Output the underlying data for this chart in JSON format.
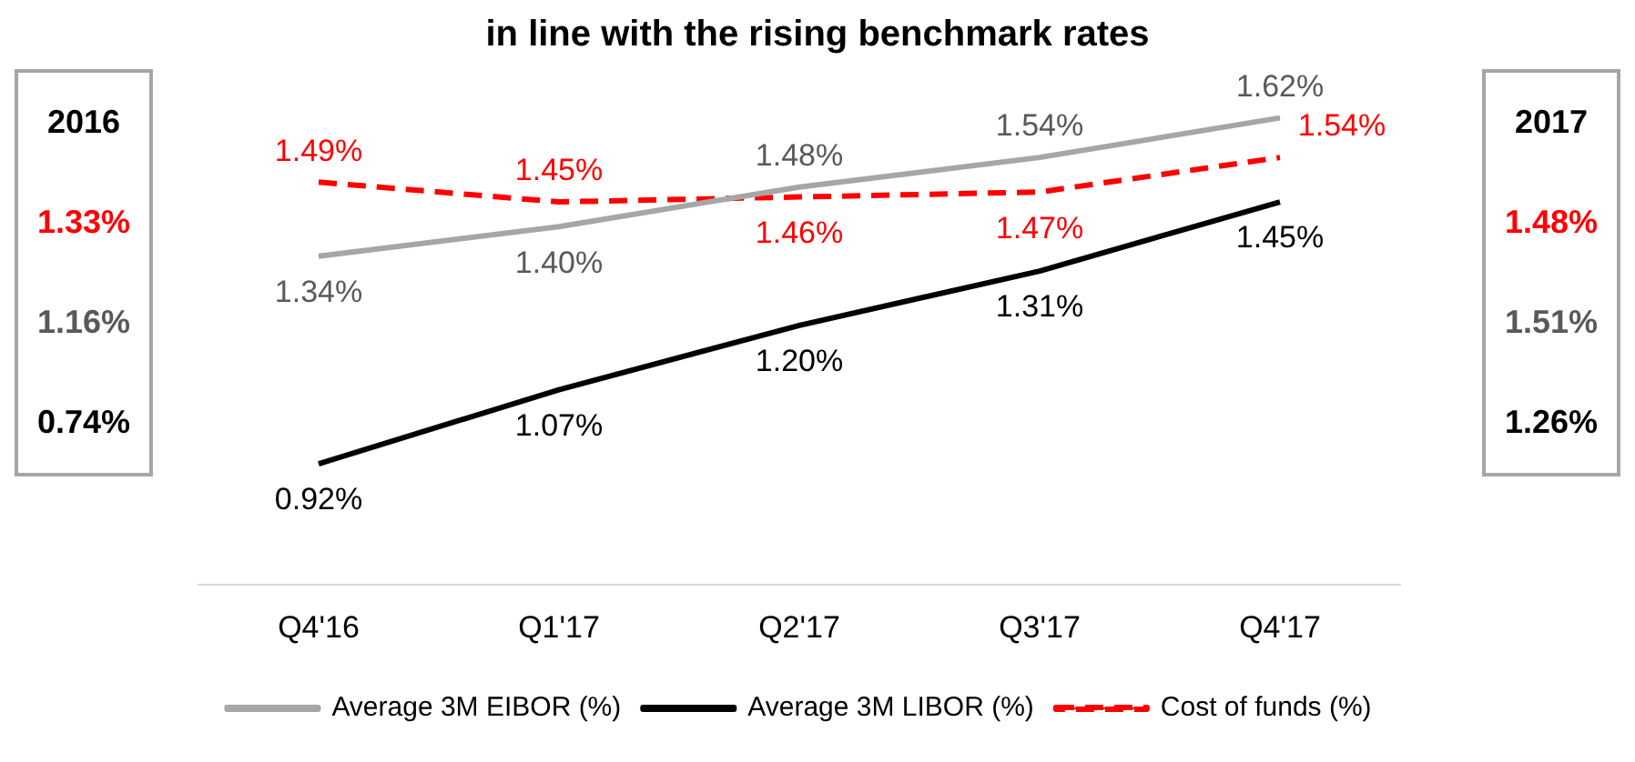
{
  "chart_data": {
    "type": "line",
    "title": "in line with the rising benchmark rates",
    "categories": [
      "Q4'16",
      "Q1'17",
      "Q2'17",
      "Q3'17",
      "Q4'17"
    ],
    "series": [
      {
        "name": "Average 3M EIBOR (%)",
        "color": "#a6a6a6",
        "values": [
          1.34,
          1.4,
          1.48,
          1.54,
          1.62
        ],
        "value_labels": [
          "1.34%",
          "1.40%",
          "1.48%",
          "1.54%",
          "1.62%"
        ],
        "line_style": "solid"
      },
      {
        "name": "Average 3M LIBOR (%)",
        "color": "#000000",
        "values": [
          0.92,
          1.07,
          1.2,
          1.31,
          1.45
        ],
        "value_labels": [
          "0.92%",
          "1.07%",
          "1.20%",
          "1.31%",
          "1.45%"
        ],
        "line_style": "solid"
      },
      {
        "name": "Cost of funds (%)",
        "color": "#ff0000",
        "values": [
          1.49,
          1.45,
          1.46,
          1.47,
          1.54
        ],
        "value_labels": [
          "1.49%",
          "1.45%",
          "1.46%",
          "1.47%",
          "1.54%"
        ],
        "line_style": "dashed"
      }
    ],
    "annotations": [
      "2016",
      "1.33%",
      "1.16%",
      "0.74%",
      "2017",
      "1.48%",
      "1.51%",
      "1.26%"
    ],
    "marker": "none",
    "legend": "bottom",
    "grid": false
  }
}
